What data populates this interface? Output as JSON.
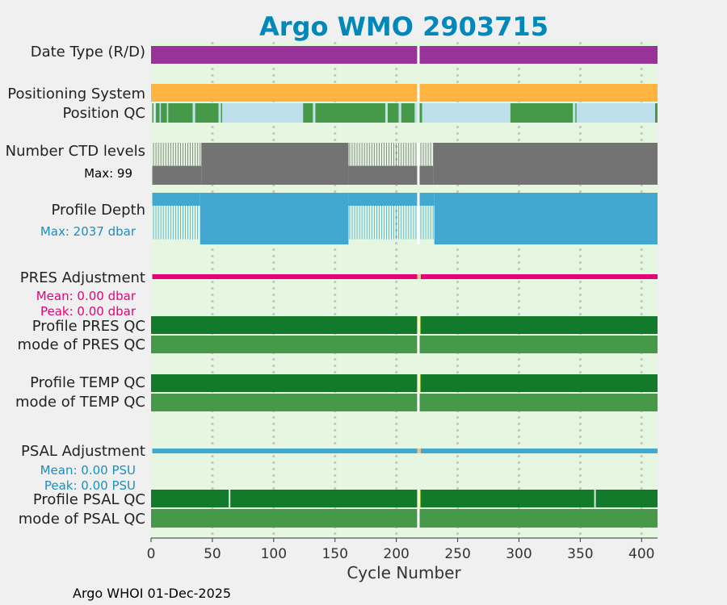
{
  "chart_data": {
    "type": "bar",
    "title": "Argo WMO 2903715",
    "xlabel": "Cycle Number",
    "xlim": [
      0,
      413
    ],
    "xticks": [
      0,
      50,
      100,
      150,
      200,
      250,
      300,
      350,
      400
    ],
    "grid": "dotted-vertical",
    "footer": "Argo WHOI 01-Dec-2025",
    "rows": [
      {
        "id": "date_type",
        "label": "Date Type (R/D)",
        "status": "R",
        "color": "#993399",
        "gaps": [
          218
        ]
      },
      {
        "id": "positioning_system",
        "label": "Positioning System",
        "status": "GPS",
        "color": "#ffb340",
        "gaps": [
          218
        ]
      },
      {
        "id": "position_qc",
        "label": "Position QC",
        "segments": [
          {
            "x": [
              1,
              2
            ],
            "qc": "good"
          },
          {
            "x": [
              3,
              4
            ],
            "qc": "missing"
          },
          {
            "x": [
              4,
              7
            ],
            "qc": "good"
          },
          {
            "x": [
              7,
              8
            ],
            "qc": "missing"
          },
          {
            "x": [
              8,
              13
            ],
            "qc": "good"
          },
          {
            "x": [
              13,
              14
            ],
            "qc": "missing"
          },
          {
            "x": [
              14,
              34
            ],
            "qc": "good"
          },
          {
            "x": [
              34,
              36
            ],
            "qc": "missing"
          },
          {
            "x": [
              36,
              55
            ],
            "qc": "good"
          },
          {
            "x": [
              55,
              57
            ],
            "qc": "missing"
          },
          {
            "x": [
              57,
              58
            ],
            "qc": "good"
          },
          {
            "x": [
              58,
              124
            ],
            "qc": "missing"
          },
          {
            "x": [
              124,
              132
            ],
            "qc": "good"
          },
          {
            "x": [
              132,
              134
            ],
            "qc": "missing"
          },
          {
            "x": [
              134,
              191
            ],
            "qc": "good"
          },
          {
            "x": [
              191,
              193
            ],
            "qc": "missing"
          },
          {
            "x": [
              193,
              202
            ],
            "qc": "good"
          },
          {
            "x": [
              202,
              204
            ],
            "qc": "missing"
          },
          {
            "x": [
              204,
              215
            ],
            "qc": "good"
          },
          {
            "x": [
              215,
              217
            ],
            "qc": "missing"
          },
          {
            "x": [
              219,
              221
            ],
            "qc": "good"
          },
          {
            "x": [
              221,
              293
            ],
            "qc": "missing"
          },
          {
            "x": [
              293,
              344
            ],
            "qc": "good"
          },
          {
            "x": [
              344,
              346
            ],
            "qc": "missing"
          },
          {
            "x": [
              346,
              347
            ],
            "qc": "good"
          },
          {
            "x": [
              347,
              411
            ],
            "qc": "missing"
          },
          {
            "x": [
              411,
              413
            ],
            "qc": "good"
          }
        ]
      },
      {
        "id": "ctd_levels",
        "label": "Number CTD levels",
        "max_label": "Max: 99",
        "color": "#737373",
        "levels": [
          {
            "x": [
              1,
              41
            ],
            "value": 0.45
          },
          {
            "x": [
              41,
              161
            ],
            "value": 1.0
          },
          {
            "x": [
              161,
              230
            ],
            "value": 0.45
          },
          {
            "x": [
              230,
              413
            ],
            "value": 1.0
          }
        ]
      },
      {
        "id": "profile_depth",
        "label": "Profile Depth",
        "max_label": "Max: 2037 dbar",
        "color": "#42a8cf",
        "levels": [
          {
            "x": [
              1,
              40
            ],
            "value": 0.25
          },
          {
            "x": [
              40,
              161
            ],
            "value": 1.0
          },
          {
            "x": [
              161,
              231
            ],
            "value": 0.25
          },
          {
            "x": [
              231,
              413
            ],
            "value": 1.0
          }
        ]
      },
      {
        "id": "pres_adjustment",
        "label": "PRES Adjustment",
        "color": "#e6007a",
        "mean_label": "Mean: 0.00 dbar",
        "peak_label": "Peak: 0.00 dbar"
      },
      {
        "id": "profile_pres_qc",
        "label": "Profile PRES QC",
        "grade": "A",
        "color": "#137a2b"
      },
      {
        "id": "mode_pres_qc",
        "label": "mode of PRES QC",
        "qc": "good",
        "color": "#47994a"
      },
      {
        "id": "profile_temp_qc",
        "label": "Profile TEMP QC",
        "grade": "A",
        "color": "#137a2b"
      },
      {
        "id": "mode_temp_qc",
        "label": "mode of TEMP QC",
        "qc": "good",
        "color": "#47994a"
      },
      {
        "id": "psal_adjustment",
        "label": "PSAL Adjustment",
        "color": "#42a8cf",
        "mean_label": "Mean: 0.00 PSU",
        "peak_label": "Peak: 0.00 PSU"
      },
      {
        "id": "profile_psal_qc",
        "label": "Profile PSAL QC",
        "grade": "A",
        "color": "#137a2b",
        "thin_gaps": [
          64,
          362
        ]
      },
      {
        "id": "mode_psal_qc",
        "label": "mode of PSAL QC",
        "qc": "good",
        "color": "#47994a"
      }
    ],
    "colors": {
      "plot_background": "#e5f7e0",
      "title": "#0088bb",
      "good": "#47994a",
      "missing": "#bde0ec",
      "gap_marker": "#ffff66",
      "adjustment_gap": "#e8c38a",
      "pres_text": "#e6007a",
      "psal_text": "#1c8ec0",
      "depth_text": "#1c8ec0"
    }
  }
}
